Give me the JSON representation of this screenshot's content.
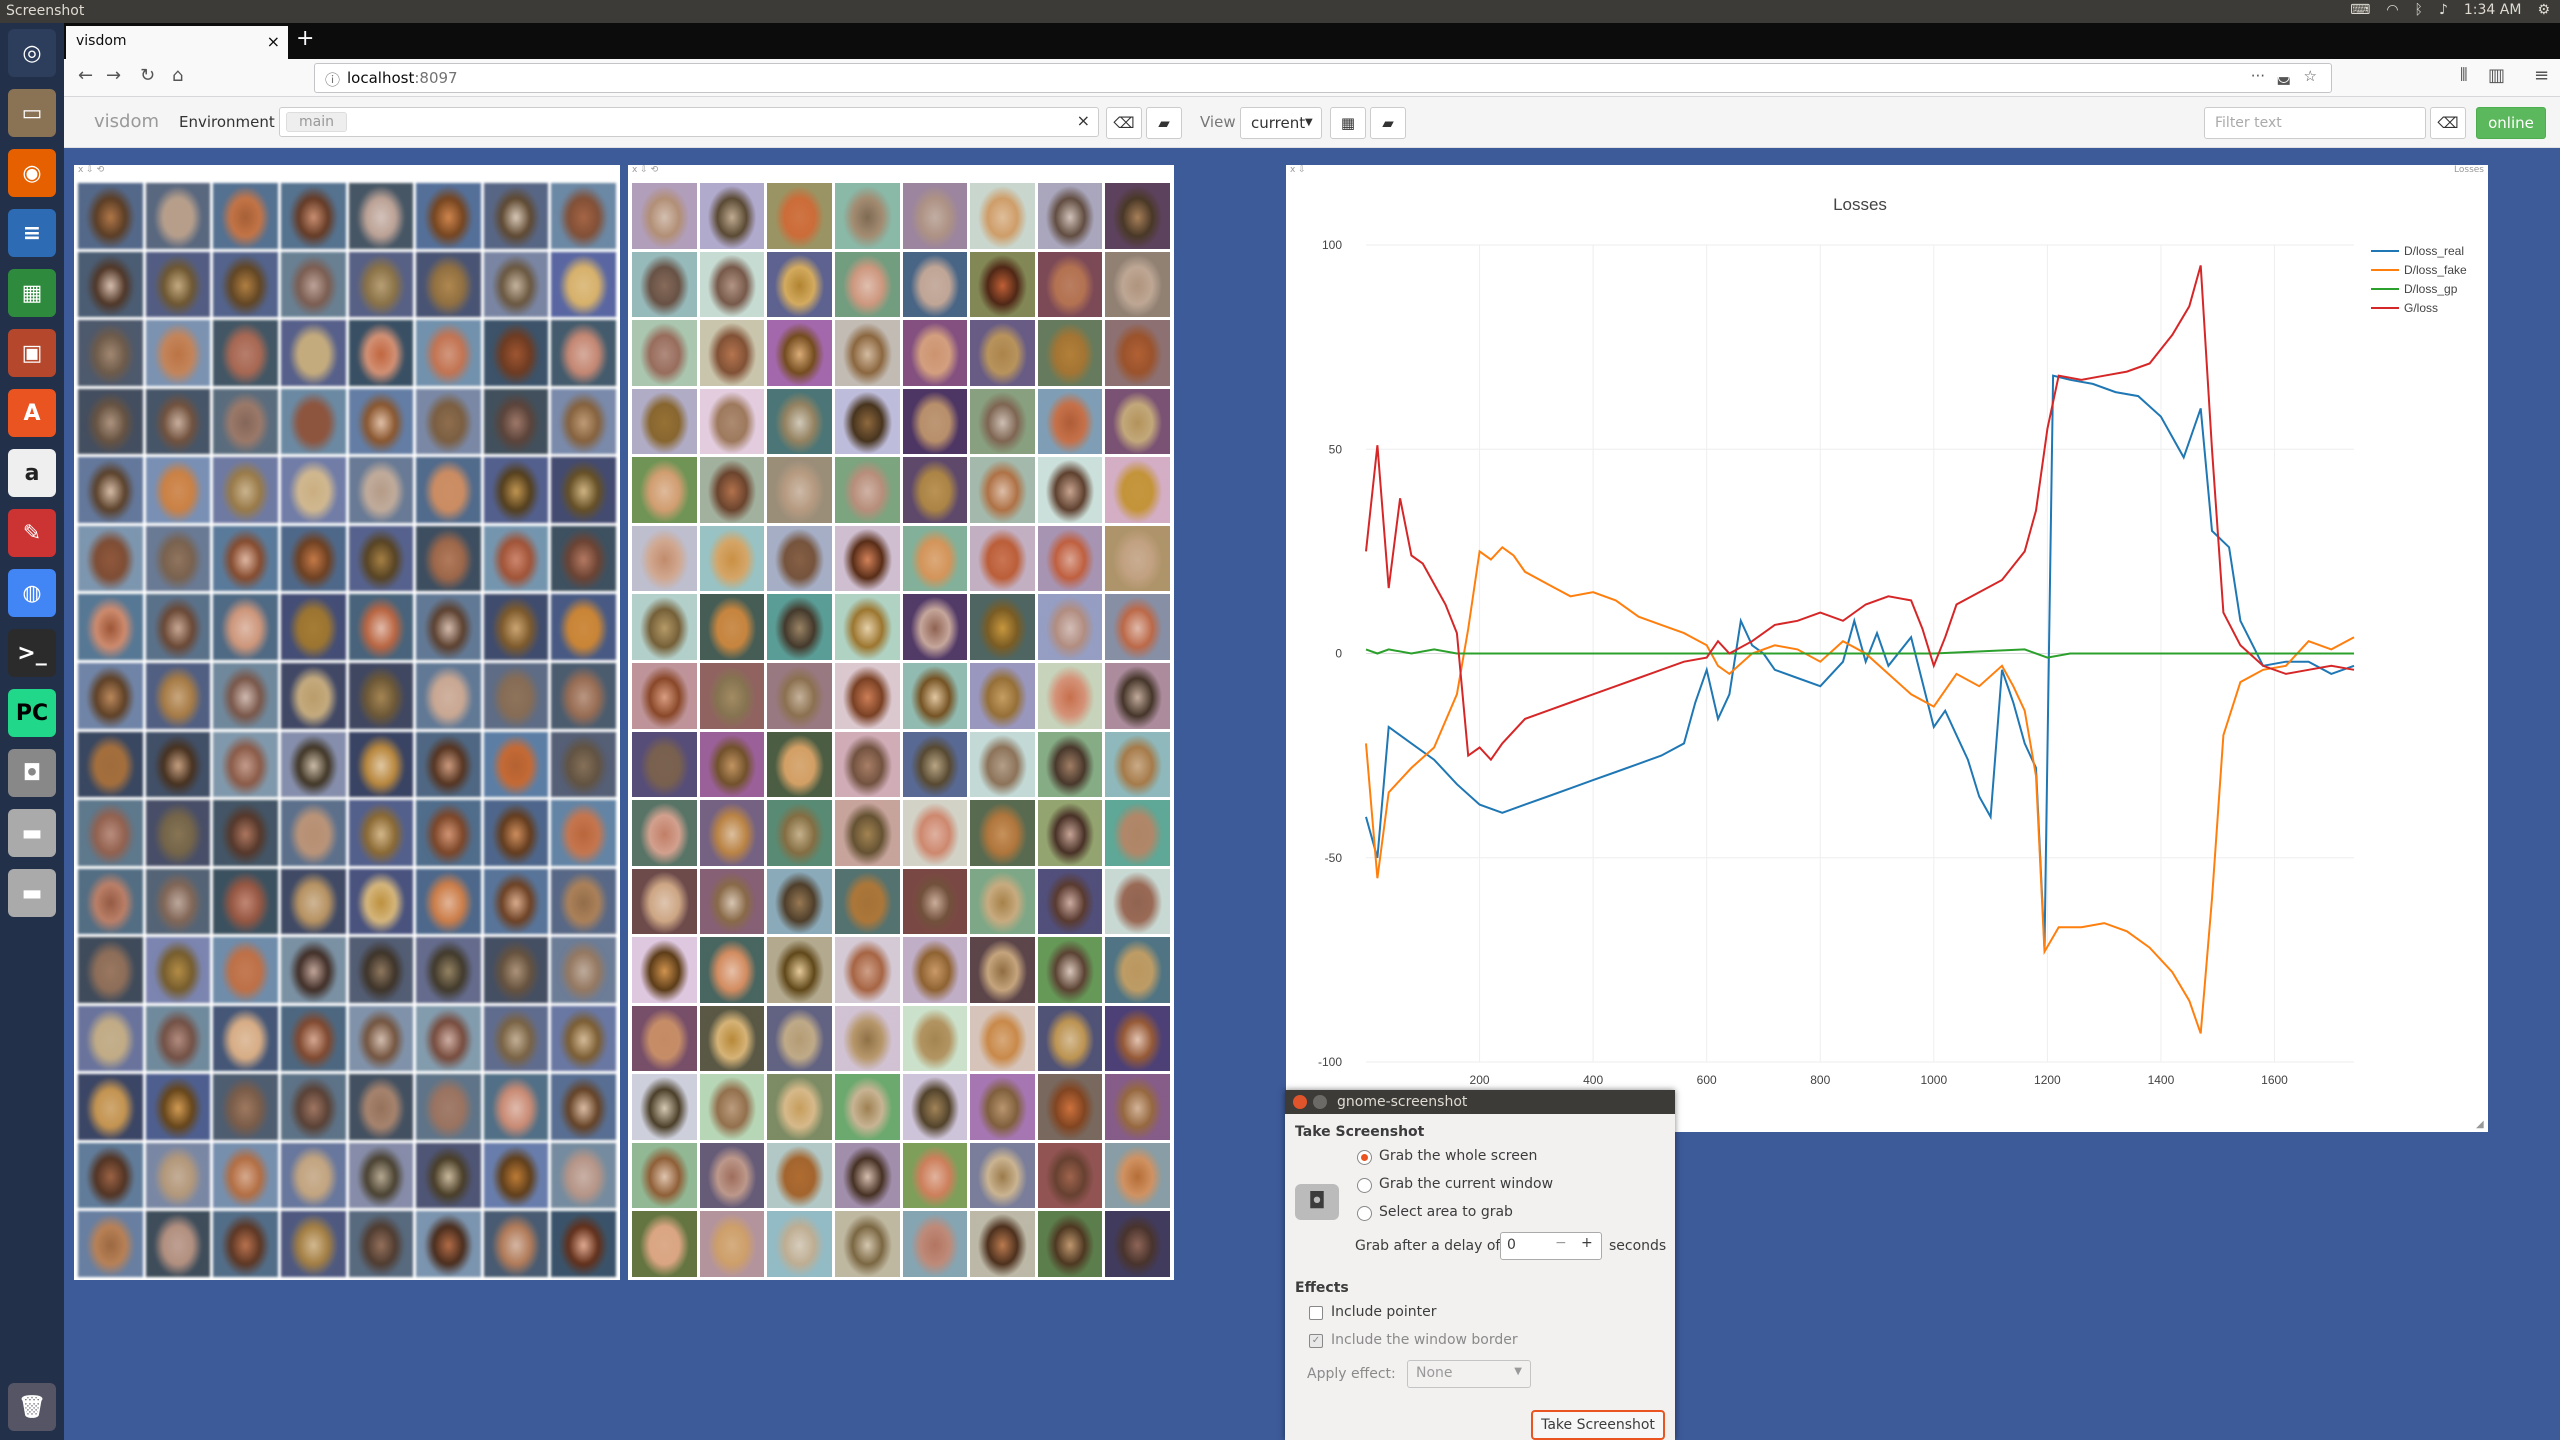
{
  "os": {
    "window_title": "Screenshot",
    "clock": "1:34 AM"
  },
  "browser": {
    "tab_title": "visdom",
    "url_host": "localhost",
    "url_port": ":8097"
  },
  "visdom": {
    "brand": "visdom",
    "environment_label": "Environment",
    "environment_chip": "main",
    "view_label": "View",
    "view_value": "current",
    "filter_placeholder": "Filter text",
    "online_label": "online"
  },
  "chart_pane": {
    "corner_label": "Losses"
  },
  "chart_data": {
    "type": "line",
    "title": "Losses",
    "xlabel": "",
    "ylabel": "",
    "xlim": [
      0,
      1740
    ],
    "ylim": [
      -100,
      100
    ],
    "x_ticks": [
      200,
      400,
      600,
      800,
      1000,
      1200,
      1400,
      1600
    ],
    "y_ticks": [
      100,
      50,
      0,
      -50,
      -100
    ],
    "legend_position": "top-right",
    "series": [
      {
        "name": "D/loss_real",
        "color": "#1f77b4",
        "points": [
          [
            0,
            -40
          ],
          [
            20,
            -50
          ],
          [
            40,
            -18
          ],
          [
            80,
            -22
          ],
          [
            120,
            -26
          ],
          [
            160,
            -32
          ],
          [
            200,
            -37
          ],
          [
            240,
            -39
          ],
          [
            280,
            -37
          ],
          [
            320,
            -35
          ],
          [
            360,
            -33
          ],
          [
            400,
            -31
          ],
          [
            440,
            -29
          ],
          [
            480,
            -27
          ],
          [
            520,
            -25
          ],
          [
            560,
            -22
          ],
          [
            580,
            -12
          ],
          [
            600,
            -4
          ],
          [
            620,
            -16
          ],
          [
            640,
            -10
          ],
          [
            660,
            8
          ],
          [
            680,
            2
          ],
          [
            700,
            0
          ],
          [
            720,
            -4
          ],
          [
            760,
            -6
          ],
          [
            800,
            -8
          ],
          [
            840,
            -2
          ],
          [
            860,
            8
          ],
          [
            880,
            -2
          ],
          [
            900,
            5
          ],
          [
            920,
            -3
          ],
          [
            960,
            4
          ],
          [
            1000,
            -18
          ],
          [
            1020,
            -14
          ],
          [
            1040,
            -20
          ],
          [
            1060,
            -26
          ],
          [
            1080,
            -35
          ],
          [
            1100,
            -40
          ],
          [
            1120,
            -4
          ],
          [
            1140,
            -12
          ],
          [
            1160,
            -22
          ],
          [
            1180,
            -28
          ],
          [
            1195,
            -72
          ],
          [
            1210,
            68
          ],
          [
            1240,
            67
          ],
          [
            1280,
            66
          ],
          [
            1320,
            64
          ],
          [
            1360,
            63
          ],
          [
            1400,
            58
          ],
          [
            1440,
            48
          ],
          [
            1470,
            60
          ],
          [
            1490,
            30
          ],
          [
            1520,
            26
          ],
          [
            1540,
            8
          ],
          [
            1580,
            -3
          ],
          [
            1620,
            -2
          ],
          [
            1660,
            -2
          ],
          [
            1700,
            -5
          ],
          [
            1740,
            -3
          ]
        ]
      },
      {
        "name": "D/loss_fake",
        "color": "#ff7f0e",
        "points": [
          [
            0,
            -22
          ],
          [
            20,
            -55
          ],
          [
            40,
            -34
          ],
          [
            80,
            -28
          ],
          [
            120,
            -23
          ],
          [
            160,
            -10
          ],
          [
            180,
            6
          ],
          [
            200,
            25
          ],
          [
            220,
            23
          ],
          [
            240,
            26
          ],
          [
            260,
            24
          ],
          [
            280,
            20
          ],
          [
            320,
            17
          ],
          [
            360,
            14
          ],
          [
            400,
            15
          ],
          [
            440,
            13
          ],
          [
            480,
            9
          ],
          [
            520,
            7
          ],
          [
            560,
            5
          ],
          [
            600,
            2
          ],
          [
            620,
            -3
          ],
          [
            640,
            -5
          ],
          [
            680,
            0
          ],
          [
            720,
            2
          ],
          [
            760,
            1
          ],
          [
            800,
            -2
          ],
          [
            840,
            3
          ],
          [
            880,
            0
          ],
          [
            920,
            -5
          ],
          [
            960,
            -10
          ],
          [
            1000,
            -13
          ],
          [
            1040,
            -5
          ],
          [
            1080,
            -8
          ],
          [
            1120,
            -3
          ],
          [
            1140,
            -8
          ],
          [
            1160,
            -14
          ],
          [
            1180,
            -30
          ],
          [
            1195,
            -73
          ],
          [
            1220,
            -67
          ],
          [
            1260,
            -67
          ],
          [
            1300,
            -66
          ],
          [
            1340,
            -68
          ],
          [
            1380,
            -72
          ],
          [
            1420,
            -78
          ],
          [
            1450,
            -85
          ],
          [
            1470,
            -93
          ],
          [
            1490,
            -60
          ],
          [
            1510,
            -20
          ],
          [
            1540,
            -7
          ],
          [
            1580,
            -4
          ],
          [
            1620,
            -3
          ],
          [
            1660,
            3
          ],
          [
            1700,
            1
          ],
          [
            1740,
            4
          ]
        ]
      },
      {
        "name": "D/loss_gp",
        "color": "#2ca02c",
        "points": [
          [
            0,
            1
          ],
          [
            20,
            0
          ],
          [
            40,
            1
          ],
          [
            80,
            0
          ],
          [
            120,
            1
          ],
          [
            160,
            0
          ],
          [
            240,
            0
          ],
          [
            400,
            0
          ],
          [
            600,
            0
          ],
          [
            800,
            0
          ],
          [
            1000,
            0
          ],
          [
            1160,
            1
          ],
          [
            1200,
            -1
          ],
          [
            1240,
            0
          ],
          [
            1400,
            0
          ],
          [
            1600,
            0
          ],
          [
            1740,
            0
          ]
        ]
      },
      {
        "name": "G/loss",
        "color": "#d62728",
        "points": [
          [
            0,
            25
          ],
          [
            20,
            51
          ],
          [
            40,
            16
          ],
          [
            60,
            38
          ],
          [
            80,
            24
          ],
          [
            100,
            22
          ],
          [
            140,
            12
          ],
          [
            160,
            5
          ],
          [
            180,
            -25
          ],
          [
            200,
            -23
          ],
          [
            220,
            -26
          ],
          [
            240,
            -22
          ],
          [
            280,
            -16
          ],
          [
            320,
            -14
          ],
          [
            360,
            -12
          ],
          [
            400,
            -10
          ],
          [
            440,
            -8
          ],
          [
            480,
            -6
          ],
          [
            520,
            -4
          ],
          [
            560,
            -2
          ],
          [
            600,
            -1
          ],
          [
            620,
            3
          ],
          [
            640,
            0
          ],
          [
            680,
            3
          ],
          [
            720,
            7
          ],
          [
            760,
            8
          ],
          [
            800,
            10
          ],
          [
            840,
            8
          ],
          [
            880,
            12
          ],
          [
            920,
            14
          ],
          [
            960,
            13
          ],
          [
            980,
            6
          ],
          [
            1000,
            -3
          ],
          [
            1020,
            4
          ],
          [
            1040,
            12
          ],
          [
            1080,
            15
          ],
          [
            1120,
            18
          ],
          [
            1160,
            25
          ],
          [
            1180,
            35
          ],
          [
            1200,
            55
          ],
          [
            1220,
            68
          ],
          [
            1260,
            67
          ],
          [
            1300,
            68
          ],
          [
            1340,
            69
          ],
          [
            1380,
            71
          ],
          [
            1420,
            78
          ],
          [
            1450,
            85
          ],
          [
            1470,
            95
          ],
          [
            1490,
            50
          ],
          [
            1510,
            10
          ],
          [
            1540,
            2
          ],
          [
            1580,
            -3
          ],
          [
            1620,
            -5
          ],
          [
            1660,
            -4
          ],
          [
            1700,
            -3
          ],
          [
            1740,
            -4
          ]
        ]
      }
    ]
  },
  "dialog": {
    "title": "gnome-screenshot",
    "section_take": "Take Screenshot",
    "opt_whole": "Grab the whole screen",
    "opt_window": "Grab the current window",
    "opt_area": "Select area to grab",
    "delay_label": "Grab after a delay of",
    "delay_value": "0",
    "delay_unit": "seconds",
    "section_effects": "Effects",
    "include_pointer": "Include pointer",
    "include_border": "Include the window border",
    "apply_effect_label": "Apply effect:",
    "apply_effect_value": "None",
    "take_button": "Take Screenshot"
  }
}
